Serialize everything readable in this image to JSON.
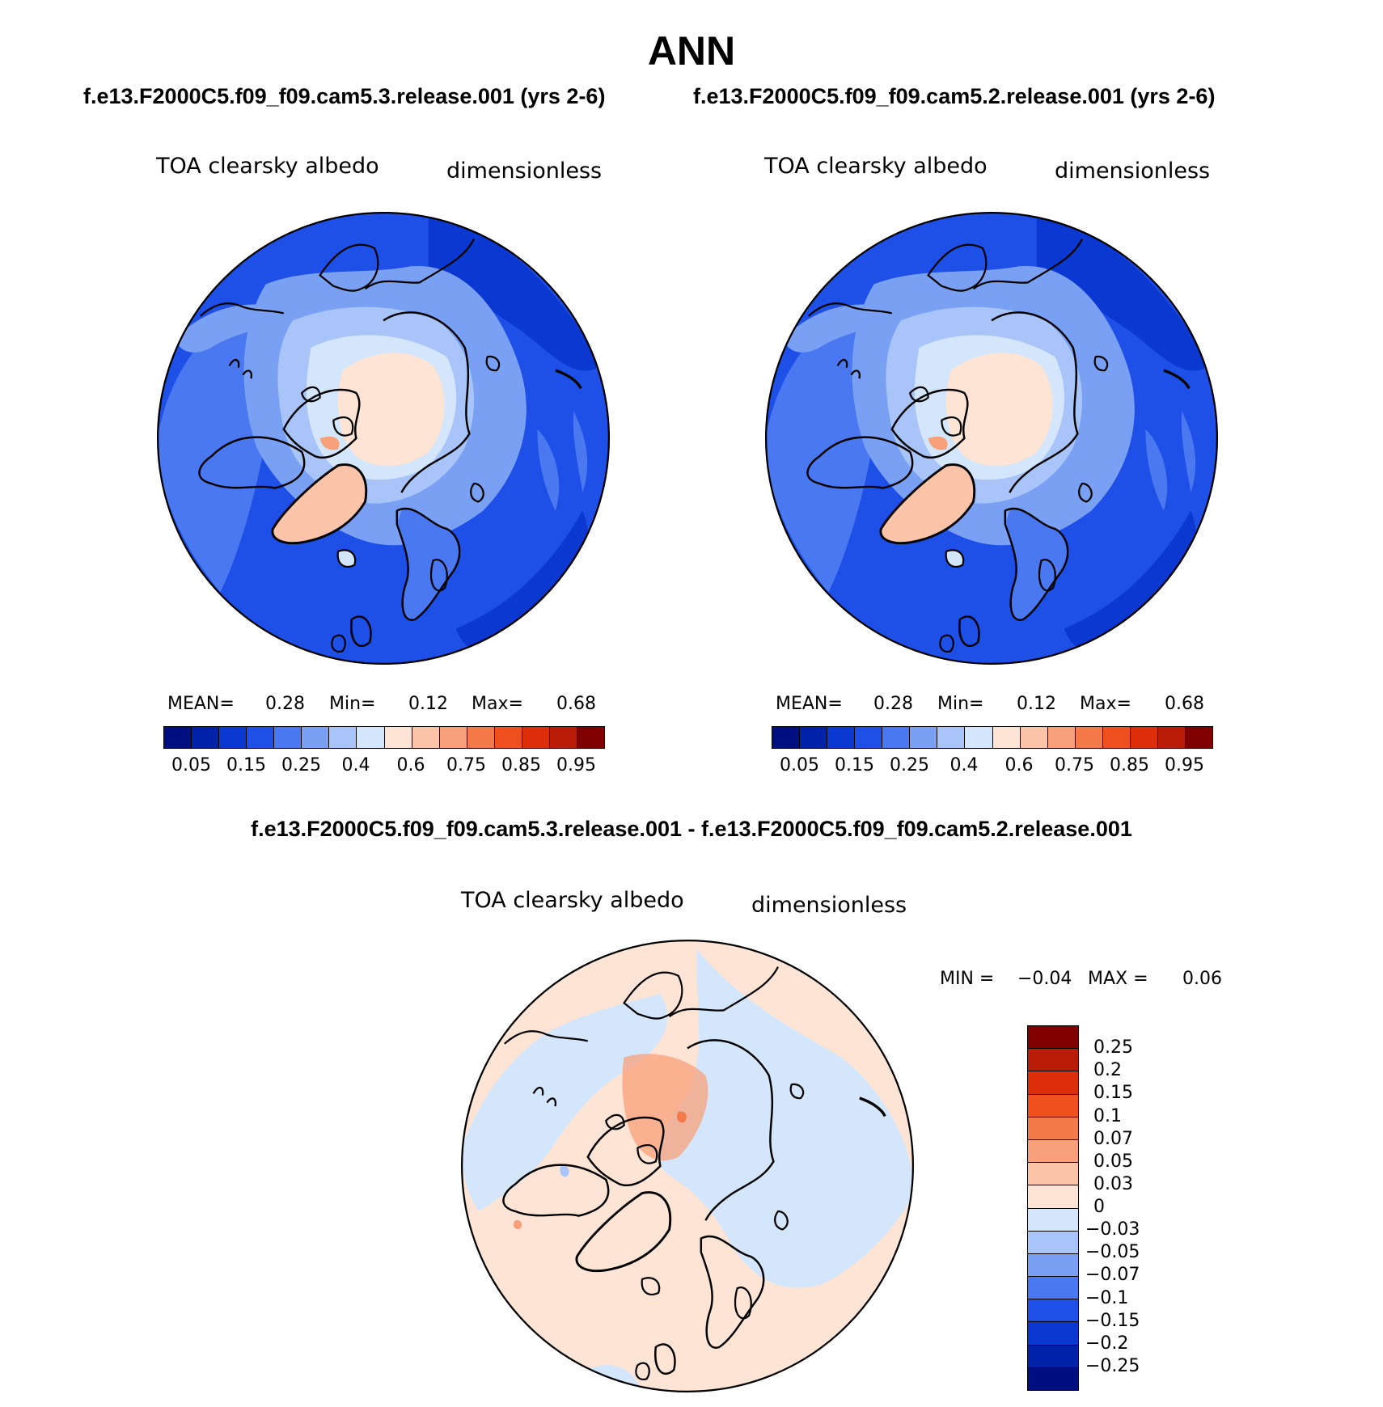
{
  "main_title": "ANN",
  "left_panel": {
    "case": "f.e13.F2000C5.f09_f09.cam5.3.release.001 (yrs 2-6)",
    "var_label": "TOA clearsky albedo",
    "units": "dimensionless",
    "mean_label": "MEAN=",
    "mean": "0.28",
    "min_label": "Min=",
    "min": "0.12",
    "max_label": "Max=",
    "max": "0.68"
  },
  "right_panel": {
    "case": "f.e13.F2000C5.f09_f09.cam5.2.release.001 (yrs 2-6)",
    "var_label": "TOA clearsky albedo",
    "units": "dimensionless",
    "mean_label": "MEAN=",
    "mean": "0.28",
    "min_label": "Min=",
    "min": "0.12",
    "max_label": "Max=",
    "max": "0.68"
  },
  "diff_panel": {
    "title": "f.e13.F2000C5.f09_f09.cam5.3.release.001 - f.e13.F2000C5.f09_f09.cam5.2.release.001",
    "var_label": "TOA clearsky albedo",
    "units": "dimensionless",
    "min_label": "MIN =",
    "min": "−0.04",
    "max_label": "MAX =",
    "max": "0.06"
  },
  "colorbar_main": {
    "colors": [
      "#000f80",
      "#0022a8",
      "#0a38d0",
      "#1e50e8",
      "#4a78f0",
      "#7aa0f4",
      "#a8c4f8",
      "#d4e6fc",
      "#fde4d4",
      "#fbc4a8",
      "#f8a07a",
      "#f57a4a",
      "#f0501e",
      "#dc2e08",
      "#b81c06",
      "#800000"
    ],
    "tick_labels": [
      "0.05",
      "0.15",
      "0.25",
      "0.4",
      "0.6",
      "0.75",
      "0.85",
      "0.95"
    ]
  },
  "colorbar_diff": {
    "colors": [
      "#800000",
      "#b81c06",
      "#dc2e08",
      "#f0501e",
      "#f57a4a",
      "#f8a07a",
      "#fbc4a8",
      "#fde4d4",
      "#d4e6fc",
      "#a8c4f8",
      "#7aa0f4",
      "#4a78f0",
      "#1e50e8",
      "#0a38d0",
      "#0022a8",
      "#000f80"
    ],
    "tick_labels": [
      "0.25",
      "0.2",
      "0.15",
      "0.1",
      "0.07",
      "0.05",
      "0.03",
      "0",
      "−0.03",
      "−0.05",
      "−0.07",
      "−0.1",
      "−0.15",
      "−0.2",
      "−0.25"
    ]
  }
}
